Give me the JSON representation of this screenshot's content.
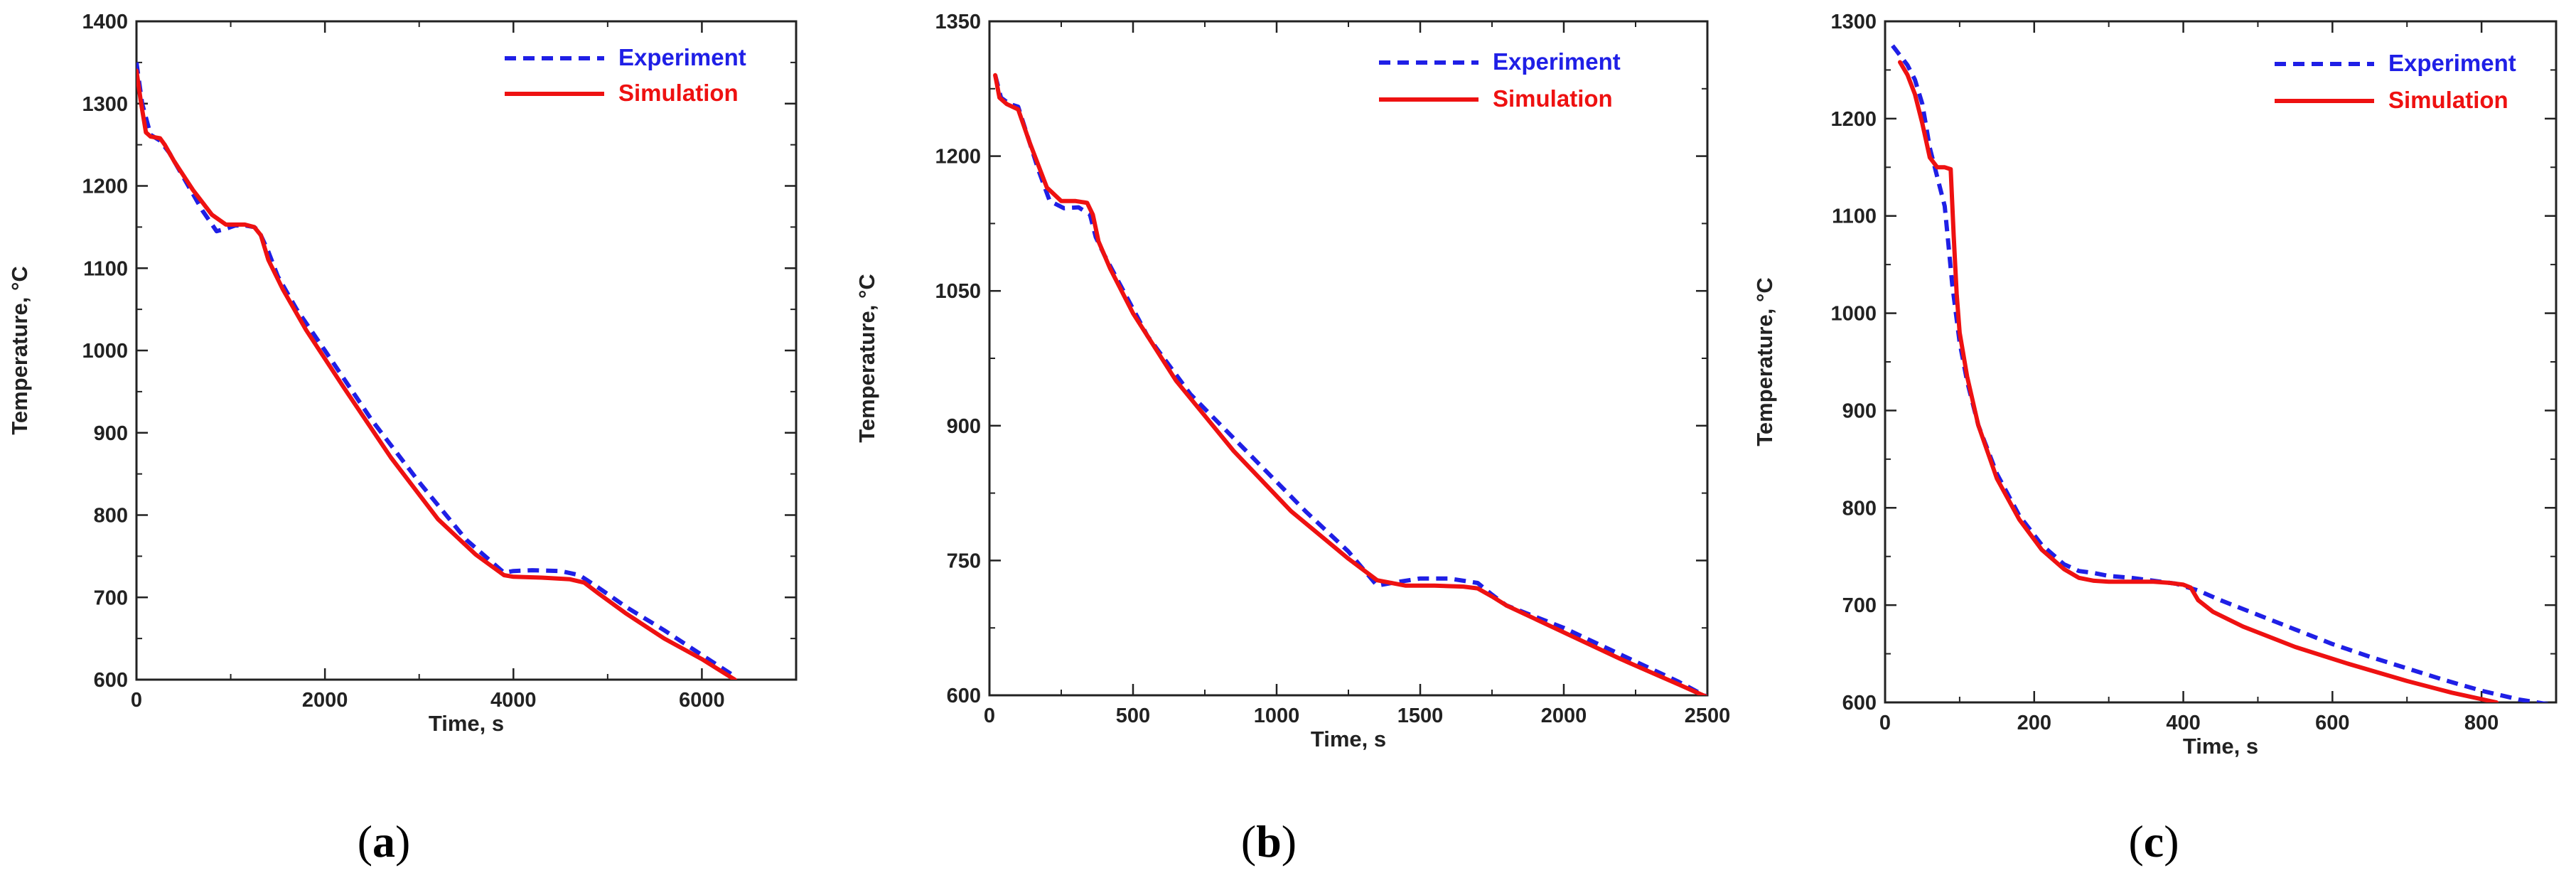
{
  "figure": {
    "colors": {
      "experiment": "#1f1fe6",
      "simulation": "#ee1111",
      "axis": "#222222"
    }
  },
  "chart_data": [
    {
      "type": "line",
      "panel_label": "a",
      "xlabel": "Time, s",
      "ylabel": "Temperature, °C",
      "xlim": [
        0,
        7000
      ],
      "ylim": [
        600,
        1400
      ],
      "xticks": [
        0,
        2000,
        4000,
        6000
      ],
      "yticks": [
        600,
        700,
        800,
        900,
        1000,
        1100,
        1200,
        1300,
        1400
      ],
      "legend": {
        "placement": "top-right",
        "entries": [
          "Experiment",
          "Simulation"
        ]
      },
      "series": [
        {
          "name": "Experiment",
          "style": "dashed",
          "x": [
            0,
            60,
            150,
            250,
            350,
            500,
            700,
            850,
            950,
            1050,
            1150,
            1250,
            1300,
            1400,
            1500,
            1700,
            2000,
            2500,
            3000,
            3500,
            3900,
            4000,
            4200,
            4500,
            4700,
            4900,
            5200,
            5600,
            6000,
            6350
          ],
          "y": [
            1350,
            1300,
            1262,
            1255,
            1240,
            1210,
            1170,
            1145,
            1148,
            1152,
            1152,
            1150,
            1145,
            1120,
            1090,
            1050,
            1000,
            915,
            840,
            770,
            730,
            732,
            733,
            732,
            727,
            712,
            688,
            660,
            630,
            604
          ]
        },
        {
          "name": "Simulation",
          "style": "solid",
          "x": [
            0,
            50,
            100,
            150,
            250,
            300,
            400,
            600,
            800,
            950,
            1050,
            1150,
            1250,
            1320,
            1400,
            1550,
            1800,
            2200,
            2700,
            3200,
            3600,
            3900,
            4000,
            4300,
            4600,
            4750,
            4900,
            5200,
            5600,
            6000,
            6350
          ],
          "y": [
            1340,
            1300,
            1265,
            1260,
            1258,
            1250,
            1230,
            1195,
            1165,
            1153,
            1153,
            1153,
            1150,
            1140,
            1110,
            1075,
            1025,
            955,
            870,
            795,
            752,
            727,
            725,
            724,
            722,
            718,
            705,
            680,
            650,
            625,
            600
          ]
        }
      ]
    },
    {
      "type": "line",
      "panel_label": "b",
      "xlabel": "Time, s",
      "ylabel": "Temperature, °C",
      "xlim": [
        0,
        2500
      ],
      "ylim": [
        600,
        1350
      ],
      "xticks": [
        0,
        500,
        1000,
        1500,
        2000,
        2500
      ],
      "yticks": [
        600,
        750,
        900,
        1050,
        1200,
        1350
      ],
      "legend": {
        "placement": "top-right",
        "entries": [
          "Experiment",
          "Simulation"
        ]
      },
      "series": [
        {
          "name": "Experiment",
          "style": "dashed",
          "x": [
            20,
            40,
            70,
            100,
            130,
            170,
            210,
            260,
            310,
            350,
            370,
            400,
            450,
            550,
            700,
            900,
            1100,
            1250,
            1350,
            1400,
            1500,
            1600,
            1700,
            1750,
            1800,
            2000,
            2200,
            2400,
            2500
          ],
          "y": [
            1290,
            1265,
            1258,
            1255,
            1225,
            1185,
            1150,
            1142,
            1143,
            1135,
            1110,
            1090,
            1060,
            1000,
            935,
            870,
            805,
            760,
            722,
            725,
            730,
            730,
            725,
            712,
            700,
            675,
            645,
            615,
            598
          ]
        },
        {
          "name": "Simulation",
          "style": "solid",
          "x": [
            20,
            35,
            60,
            100,
            140,
            200,
            250,
            300,
            340,
            360,
            380,
            420,
            500,
            650,
            850,
            1050,
            1250,
            1350,
            1450,
            1550,
            1650,
            1700,
            1750,
            1800,
            2000,
            2200,
            2400,
            2520
          ],
          "y": [
            1290,
            1265,
            1258,
            1252,
            1215,
            1165,
            1150,
            1150,
            1148,
            1135,
            1105,
            1075,
            1025,
            950,
            872,
            805,
            752,
            728,
            722,
            722,
            721,
            719,
            710,
            700,
            670,
            640,
            612,
            595
          ]
        }
      ]
    },
    {
      "type": "line",
      "panel_label": "c",
      "xlabel": "Time, s",
      "ylabel": "Temperature, °C",
      "xlim": [
        0,
        900
      ],
      "ylim": [
        600,
        1300
      ],
      "xticks": [
        0,
        200,
        400,
        600,
        800
      ],
      "yticks": [
        600,
        700,
        800,
        900,
        1000,
        1100,
        1200,
        1300
      ],
      "legend": {
        "placement": "top-right",
        "entries": [
          "Experiment",
          "Simulation"
        ]
      },
      "series": [
        {
          "name": "Experiment",
          "style": "dashed",
          "x": [
            10,
            20,
            30,
            40,
            50,
            60,
            70,
            80,
            85,
            90,
            95,
            100,
            110,
            125,
            150,
            180,
            210,
            240,
            260,
            280,
            300,
            330,
            360,
            390,
            420,
            450,
            500,
            550,
            600,
            650,
            700,
            750,
            800,
            850,
            890
          ],
          "y": [
            1275,
            1265,
            1255,
            1240,
            1215,
            1170,
            1140,
            1110,
            1070,
            1030,
            1000,
            970,
            930,
            885,
            835,
            792,
            762,
            742,
            735,
            733,
            730,
            728,
            725,
            722,
            715,
            705,
            690,
            675,
            660,
            647,
            635,
            623,
            612,
            603,
            598
          ]
        },
        {
          "name": "Simulation",
          "style": "solid",
          "x": [
            20,
            30,
            40,
            50,
            60,
            70,
            80,
            88,
            92,
            96,
            100,
            110,
            125,
            150,
            180,
            210,
            240,
            260,
            280,
            300,
            330,
            360,
            380,
            400,
            410,
            420,
            440,
            480,
            550,
            620,
            700,
            760,
            820
          ],
          "y": [
            1258,
            1245,
            1225,
            1195,
            1160,
            1150,
            1150,
            1148,
            1080,
            1020,
            980,
            935,
            885,
            830,
            788,
            757,
            737,
            728,
            725,
            724,
            724,
            724,
            723,
            721,
            718,
            705,
            693,
            678,
            657,
            640,
            622,
            610,
            600
          ]
        }
      ]
    }
  ]
}
